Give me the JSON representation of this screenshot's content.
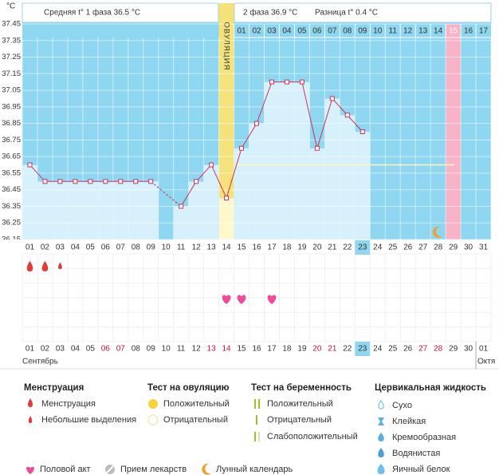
{
  "chart_data": {
    "type": "bbt",
    "y_unit": "°C",
    "header": {
      "phase1": "Средняя t° 1 фаза 36.5 °C",
      "phase2": "2 фаза 36.9 °C",
      "diff": "Разница t° 0.4 °C"
    },
    "ovulation_label": "ОВУЛЯЦИЯ",
    "ylim": [
      36.15,
      37.45
    ],
    "yticks": [
      37.45,
      37.35,
      37.25,
      37.15,
      37.05,
      36.95,
      36.85,
      36.75,
      36.65,
      36.55,
      36.45,
      36.35,
      36.25,
      36.15
    ],
    "categories": [
      "01",
      "02",
      "03",
      "04",
      "05",
      "06",
      "07",
      "08",
      "09",
      "10",
      "11",
      "12",
      "13",
      "14",
      "15",
      "16",
      "17",
      "18",
      "19",
      "20",
      "21",
      "22",
      "23",
      "24",
      "25",
      "26",
      "27",
      "28",
      "29",
      "30",
      "31"
    ],
    "values": [
      36.6,
      36.5,
      36.5,
      36.5,
      36.5,
      36.5,
      36.5,
      36.5,
      36.5,
      null,
      36.35,
      36.5,
      36.6,
      36.4,
      36.7,
      36.85,
      37.1,
      37.1,
      37.1,
      36.7,
      37.0,
      36.9,
      36.8,
      null,
      null,
      null,
      null,
      null,
      null,
      null,
      null
    ],
    "cycle_days": [
      null,
      null,
      null,
      null,
      null,
      null,
      null,
      null,
      null,
      null,
      null,
      null,
      null,
      null,
      "01",
      "02",
      "03",
      "04",
      "05",
      "06",
      "07",
      "08",
      "09",
      "10",
      "11",
      "12",
      "13",
      "14",
      "15",
      "16",
      "17"
    ],
    "coverline": 36.6,
    "ovulation_day": "14",
    "today": "23",
    "expected_period_day": "29",
    "moon_day": "28",
    "menstruation_days": [
      "01",
      "02"
    ],
    "spotting_days": [
      "03"
    ],
    "intercourse_days": [
      "14",
      "15",
      "17"
    ],
    "dates": [
      "01",
      "02",
      "03",
      "04",
      "05",
      "06",
      "07",
      "08",
      "09",
      "10",
      "11",
      "12",
      "13",
      "14",
      "15",
      "16",
      "17",
      "18",
      "19",
      "20",
      "21",
      "22",
      "23",
      "24",
      "25",
      "26",
      "27",
      "28",
      "29",
      "30",
      "01"
    ],
    "weekend_dates": [
      "06",
      "07",
      "13",
      "14",
      "20",
      "21",
      "27",
      "28"
    ],
    "months": [
      "Сентябрь",
      "Октя"
    ]
  },
  "legend": {
    "menstruation": {
      "title": "Менструация",
      "items": [
        "Менструация",
        "Небольшие выделения"
      ]
    },
    "ovulation_test": {
      "title": "Тест на овуляцию",
      "items": [
        "Положительный",
        "Отрицательный"
      ]
    },
    "pregnancy_test": {
      "title": "Тест на беременность",
      "items": [
        "Положительный",
        "Отрицательный",
        "Слабоположительный"
      ]
    },
    "cervical": {
      "title": "Цервикальная жидкость",
      "items": [
        "Сухо",
        "Клейкая",
        "Кремообразная",
        "Водянистая",
        "Яичный белок"
      ]
    },
    "other": [
      "Половой акт",
      "Прием лекарств",
      "Лунный календарь"
    ]
  }
}
